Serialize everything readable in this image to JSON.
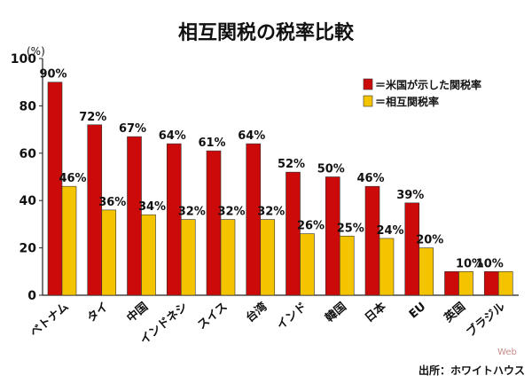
{
  "chart_data": {
    "type": "bar",
    "title": "相互関税の税率比較",
    "ylabel": "(%)",
    "xlabel": "",
    "ylim": [
      0,
      100
    ],
    "yticks": [
      0,
      20,
      40,
      60,
      80,
      100
    ],
    "categories": [
      "ベトナム",
      "タイ",
      "中国",
      "インドネシ",
      "スイス",
      "台湾",
      "インド",
      "韓国",
      "日本",
      "EU",
      "英国",
      "ブラジル"
    ],
    "series": [
      {
        "name": "＝米国が示した関税率",
        "color": "#cc0a0a",
        "values": [
          90,
          72,
          67,
          64,
          61,
          64,
          52,
          50,
          46,
          39,
          10,
          10
        ],
        "labels": [
          "90%",
          "72%",
          "67%",
          "64%",
          "61%",
          "64%",
          "52%",
          "50%",
          "46%",
          "39%",
          "",
          "10%"
        ]
      },
      {
        "name": "＝相互関税率",
        "color": "#f5c400",
        "values": [
          46,
          36,
          34,
          32,
          32,
          32,
          26,
          25,
          24,
          20,
          10,
          10
        ],
        "labels": [
          "46%",
          "36%",
          "34%",
          "32%",
          "32%",
          "32%",
          "26%",
          "25%",
          "24%",
          "20%",
          "10%",
          ""
        ]
      }
    ],
    "legend_position": "top-right",
    "source": "出所：ホワイトハウス",
    "grid": false
  },
  "watermark": "Web"
}
